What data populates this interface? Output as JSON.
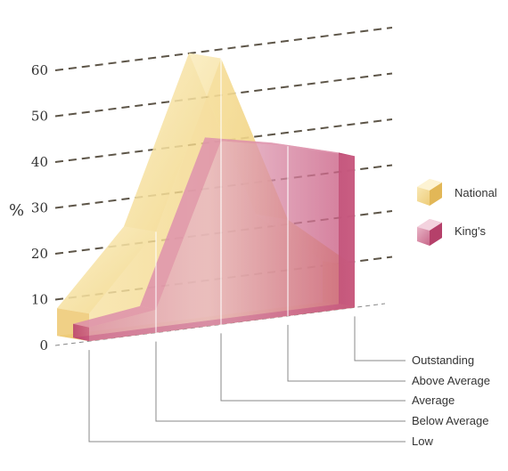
{
  "chart_data": {
    "type": "area",
    "style": "3d",
    "ylabel": "%",
    "ylim": [
      0,
      60
    ],
    "yticks": [
      0,
      10,
      20,
      30,
      40,
      50,
      60
    ],
    "grid": true,
    "legend_position": "right",
    "categories": [
      "Low",
      "Below Average",
      "Average",
      "Above Average",
      "Outstanding"
    ],
    "series": [
      {
        "name": "National",
        "values": [
          6,
          22,
          58,
          21,
          9
        ],
        "color": "#f1d37f"
      },
      {
        "name": "King's",
        "values": [
          3,
          5,
          40,
          37,
          33
        ],
        "color": "#c2567a"
      }
    ]
  }
}
